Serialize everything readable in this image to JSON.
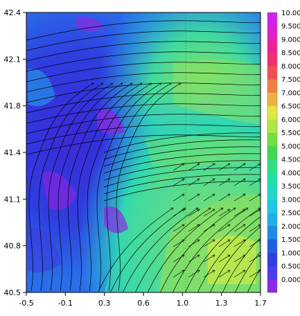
{
  "chart_data": {
    "type": "heatmap",
    "title": "",
    "xlabel": "",
    "ylabel": "",
    "xlim": [
      -0.5,
      1.7
    ],
    "ylim": [
      40.5,
      42.4
    ],
    "x_ticks": [
      "-0.5",
      "-0.1",
      "0.3",
      "0.6",
      "1.0",
      "1.3",
      "1.7"
    ],
    "y_ticks": [
      "40.5",
      "40.8",
      "41.1",
      "41.4",
      "41.8",
      "42.1",
      "42.4"
    ],
    "grid": true,
    "overlay": "streamlines",
    "colorbar": {
      "levels": [
        "0.000",
        "0.500",
        "1.000",
        "1.500",
        "2.000",
        "2.500",
        "3.000",
        "3.500",
        "4.000",
        "4.500",
        "5.000",
        "5.500",
        "6.000",
        "6.500",
        "7.000",
        "7.500",
        "8.000",
        "8.500",
        "9.000",
        "9.500",
        "10.00"
      ],
      "colors": [
        "#8a2be2",
        "#4b3cf0",
        "#2f3ee0",
        "#2060e0",
        "#2088e8",
        "#20b0e8",
        "#1ec8e8",
        "#20d8c8",
        "#20e0a8",
        "#30e080",
        "#40d850",
        "#70e040",
        "#b0e840",
        "#e0e840",
        "#f0b040",
        "#f08040",
        "#f05050",
        "#f03070",
        "#f02098",
        "#e020c8",
        "#d020f0"
      ]
    },
    "field_summary": {
      "min_region": "west / north-west (values about 0–1)",
      "max_region": "south-east (values about 5–6)"
    }
  }
}
